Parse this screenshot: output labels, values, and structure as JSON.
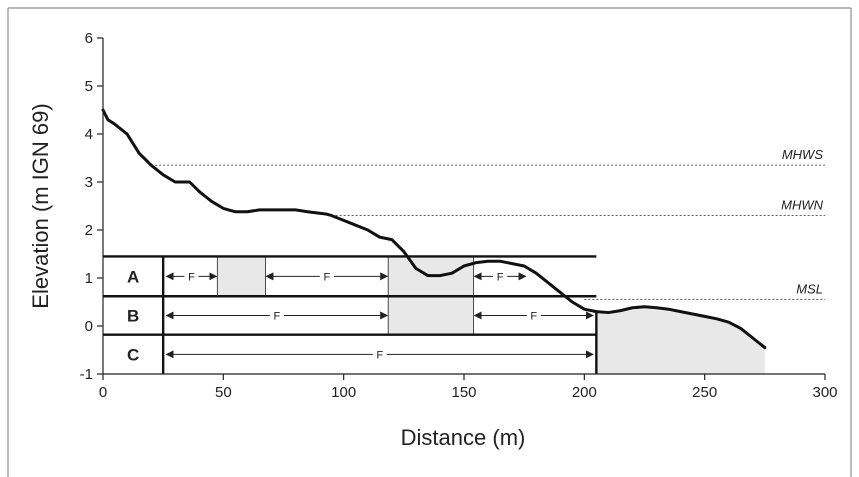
{
  "chart_data": {
    "type": "line",
    "title": "",
    "xlabel": "Distance (m)",
    "ylabel": "Elevation (m IGN 69)",
    "xlim": [
      0,
      300
    ],
    "ylim": [
      -1,
      6
    ],
    "x_ticks": [
      0,
      50,
      100,
      150,
      200,
      250,
      300
    ],
    "y_ticks": [
      -1,
      0,
      1,
      2,
      3,
      4,
      5,
      6
    ],
    "grid": false,
    "profile": {
      "x": [
        0,
        2,
        5,
        10,
        15,
        20,
        25,
        30,
        33,
        36,
        40,
        45,
        50,
        55,
        60,
        65,
        70,
        75,
        80,
        85,
        90,
        93,
        95,
        100,
        105,
        110,
        115,
        118,
        120,
        122,
        125,
        130,
        135,
        140,
        145,
        150,
        155,
        160,
        165,
        170,
        175,
        180,
        185,
        190,
        195,
        200,
        205,
        210,
        215,
        220,
        225,
        230,
        235,
        240,
        245,
        250,
        255,
        260,
        265,
        270,
        275
      ],
      "y": [
        4.5,
        4.3,
        4.2,
        4.0,
        3.6,
        3.35,
        3.15,
        3.0,
        3.0,
        3.0,
        2.8,
        2.6,
        2.45,
        2.38,
        2.38,
        2.42,
        2.42,
        2.42,
        2.42,
        2.38,
        2.35,
        2.33,
        2.3,
        2.2,
        2.1,
        2.0,
        1.85,
        1.82,
        1.8,
        1.7,
        1.55,
        1.2,
        1.05,
        1.05,
        1.1,
        1.25,
        1.32,
        1.35,
        1.35,
        1.3,
        1.25,
        1.1,
        0.9,
        0.7,
        0.5,
        0.35,
        0.3,
        0.28,
        0.32,
        0.38,
        0.4,
        0.38,
        0.35,
        0.3,
        0.25,
        0.2,
        0.15,
        0.08,
        -0.05,
        -0.25,
        -0.45
      ]
    },
    "reference_levels": [
      {
        "name": "MHWS",
        "y": 3.35,
        "x_start": 20,
        "x_end": 300
      },
      {
        "name": "MHWN",
        "y": 2.3,
        "x_start": 95,
        "x_end": 300
      },
      {
        "name": "MSL",
        "y": 0.55,
        "x_start": 200,
        "x_end": 300
      }
    ],
    "zones": [
      {
        "name": "A",
        "y_top": 1.45,
        "y_bottom": 0.62
      },
      {
        "name": "B",
        "y_top": 0.62,
        "y_bottom": -0.18
      },
      {
        "name": "C",
        "y_top": -0.18,
        "y_bottom": -1.0
      }
    ],
    "zone_box": {
      "x_start": 25,
      "x_end": 205
    },
    "shaded_regions": [
      {
        "x_start": 47.5,
        "x_end": 67.5,
        "y_top": 1.45,
        "y_bottom": 0.62
      },
      {
        "x_start": 118.5,
        "x_end": 154,
        "y_top": 1.45,
        "y_bottom": -0.18
      },
      {
        "x_start": 205,
        "x_end": 275,
        "y_top": "profile",
        "y_bottom": -1.0
      }
    ],
    "f_spans": [
      {
        "label": "F",
        "x_start": 26,
        "x_end": 47.5,
        "zone": "A"
      },
      {
        "label": "F",
        "x_start": 67.5,
        "x_end": 118.5,
        "zone": "A"
      },
      {
        "label": "F",
        "x_start": 154,
        "x_end": 176,
        "zone": "A"
      },
      {
        "label": "F",
        "x_start": 26,
        "x_end": 118.5,
        "zone": "B"
      },
      {
        "label": "F",
        "x_start": 154,
        "x_end": 204,
        "zone": "B"
      },
      {
        "label": "F",
        "x_start": 26,
        "x_end": 204,
        "zone": "C"
      }
    ]
  }
}
